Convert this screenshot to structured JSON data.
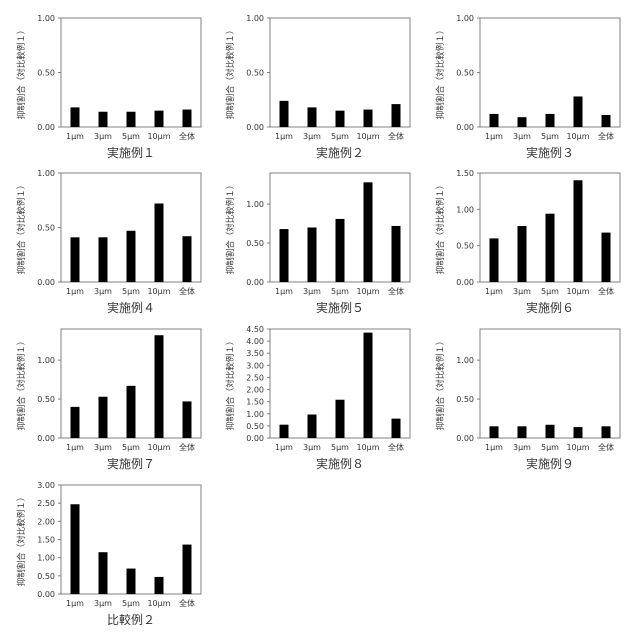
{
  "chart_data": [
    {
      "type": "bar",
      "title": "実施例１",
      "ylabel": "抑制割合（対比較例１）",
      "categories": [
        "1μm",
        "3μm",
        "5μm",
        "10μm",
        "全体"
      ],
      "values": [
        0.18,
        0.14,
        0.14,
        0.15,
        0.16
      ],
      "ylim": [
        0,
        1.0
      ],
      "yticks": [
        0,
        0.5,
        1.0
      ],
      "ytick_labels": [
        "0.00",
        "0.50",
        "1.00"
      ],
      "grid": false
    },
    {
      "type": "bar",
      "title": "実施例２",
      "ylabel": "抑制割合（対比較例１）",
      "categories": [
        "1μm",
        "3μm",
        "5μm",
        "10μm",
        "全体"
      ],
      "values": [
        0.24,
        0.18,
        0.15,
        0.16,
        0.21
      ],
      "ylim": [
        0,
        1.0
      ],
      "yticks": [
        0,
        0.5,
        1.0
      ],
      "ytick_labels": [
        "0.00",
        "0.50",
        "1.00"
      ],
      "grid": false
    },
    {
      "type": "bar",
      "title": "実施例３",
      "ylabel": "抑制割合（対比較例１）",
      "categories": [
        "1μm",
        "3μm",
        "5μm",
        "10μm",
        "全体"
      ],
      "values": [
        0.12,
        0.09,
        0.12,
        0.28,
        0.11
      ],
      "ylim": [
        0,
        1.0
      ],
      "yticks": [
        0,
        0.5,
        1.0
      ],
      "ytick_labels": [
        "0.00",
        "0.50",
        "1.00"
      ],
      "grid": false
    },
    {
      "type": "bar",
      "title": "実施例４",
      "ylabel": "抑制割合（対比較例１）",
      "categories": [
        "1μm",
        "3μm",
        "5μm",
        "10μm",
        "全体"
      ],
      "values": [
        0.41,
        0.41,
        0.47,
        0.72,
        0.42
      ],
      "ylim": [
        0,
        1.0
      ],
      "yticks": [
        0,
        0.5,
        1.0
      ],
      "ytick_labels": [
        "0.00",
        "0.50",
        "1.00"
      ],
      "grid": false
    },
    {
      "type": "bar",
      "title": "実施例５",
      "ylabel": "抑制割合（対比較例１）",
      "categories": [
        "1μm",
        "3μm",
        "5μm",
        "10μm",
        "全体"
      ],
      "values": [
        0.68,
        0.7,
        0.81,
        1.28,
        0.72
      ],
      "ylim": [
        0,
        1.4
      ],
      "yticks": [
        0,
        0.5,
        1.0
      ],
      "ytick_labels": [
        "0.00",
        "0.50",
        "1.00"
      ],
      "grid": false
    },
    {
      "type": "bar",
      "title": "実施例６",
      "ylabel": "抑制割合（対比較例１）",
      "categories": [
        "1μm",
        "3μm",
        "5μm",
        "10μm",
        "全体"
      ],
      "values": [
        0.6,
        0.77,
        0.94,
        1.4,
        0.68
      ],
      "ylim": [
        0,
        1.5
      ],
      "yticks": [
        0,
        0.5,
        1.0,
        1.5
      ],
      "ytick_labels": [
        "0.00",
        "0.50",
        "1.00",
        "1.50"
      ],
      "grid": false
    },
    {
      "type": "bar",
      "title": "実施例７",
      "ylabel": "抑制割合（対比較例１）",
      "categories": [
        "1μm",
        "3μm",
        "5μm",
        "10μm",
        "全体"
      ],
      "values": [
        0.4,
        0.53,
        0.67,
        1.32,
        0.47
      ],
      "ylim": [
        0,
        1.4
      ],
      "yticks": [
        0,
        0.5,
        1.0
      ],
      "ytick_labels": [
        "0.00",
        "0.50",
        "1.00"
      ],
      "grid": false
    },
    {
      "type": "bar",
      "title": "実施例８",
      "ylabel": "抑制割合（対比較例１）",
      "categories": [
        "1μm",
        "3μm",
        "5μm",
        "10μm",
        "全体"
      ],
      "values": [
        0.55,
        0.97,
        1.58,
        4.35,
        0.8
      ],
      "ylim": [
        0,
        4.5
      ],
      "yticks": [
        0,
        0.5,
        1.0,
        1.5,
        2.0,
        2.5,
        3.0,
        3.5,
        4.0,
        4.5
      ],
      "ytick_labels": [
        "0.00",
        "0.50",
        "1.00",
        "1.50",
        "2.00",
        "2.50",
        "3.00",
        "3.50",
        "4.00",
        "4.50"
      ],
      "grid": false
    },
    {
      "type": "bar",
      "title": "実施例９",
      "ylabel": "抑制割合（対比較例１）",
      "categories": [
        "1μm",
        "3μm",
        "5μm",
        "10μm",
        "全体"
      ],
      "values": [
        0.15,
        0.15,
        0.17,
        0.14,
        0.15
      ],
      "ylim": [
        0,
        1.4
      ],
      "yticks": [
        0,
        0.5,
        1.0
      ],
      "ytick_labels": [
        "0.00",
        "0.50",
        "1.00"
      ],
      "grid": false
    },
    {
      "type": "bar",
      "title": "比較例２",
      "ylabel": "抑制割合（対比較例１）",
      "categories": [
        "1μm",
        "3μm",
        "5μm",
        "10μm",
        "全体"
      ],
      "values": [
        2.47,
        1.15,
        0.7,
        0.47,
        1.36
      ],
      "ylim": [
        0,
        3.0
      ],
      "yticks": [
        0,
        0.5,
        1.0,
        1.5,
        2.0,
        2.5,
        3.0
      ],
      "ytick_labels": [
        "0.00",
        "0.50",
        "1.00",
        "1.50",
        "2.00",
        "2.50",
        "3.00"
      ],
      "grid": false
    }
  ]
}
